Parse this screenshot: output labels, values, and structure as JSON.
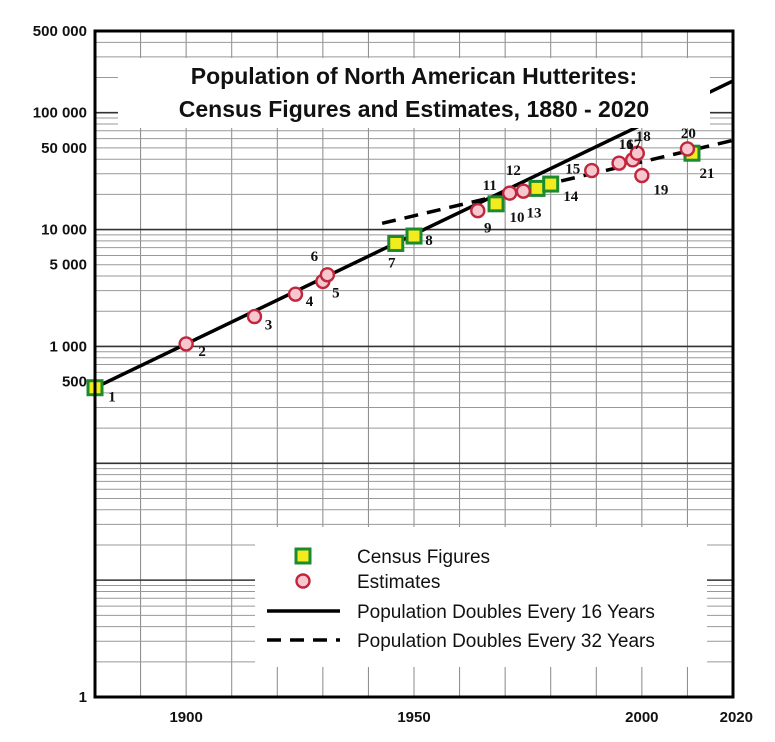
{
  "chart_data": {
    "type": "scatter",
    "title": "Population of North American Hutterites:",
    "subtitle": "Census Figures and Estimates, 1880 - 2020",
    "xlabel": "",
    "ylabel": "",
    "xlim": [
      1880,
      2020
    ],
    "ylim": [
      1,
      500000
    ],
    "yscale": "log",
    "x_ticks": [
      1900,
      1950,
      2000,
      2020
    ],
    "y_ticks": [
      {
        "value": 1,
        "label": "1"
      },
      {
        "value": 500,
        "label": "500"
      },
      {
        "value": 1000,
        "label": "1 000"
      },
      {
        "value": 5000,
        "label": "5 000"
      },
      {
        "value": 10000,
        "label": "10 000"
      },
      {
        "value": 50000,
        "label": "50 000"
      },
      {
        "value": 100000,
        "label": "100 000"
      },
      {
        "value": 500000,
        "label": "500 000"
      }
    ],
    "grid": true,
    "legend_position": "bottom-right",
    "series": [
      {
        "name": "Census Figures",
        "marker": "square",
        "color": "#f2ec1e",
        "edge_color": "#1c8a2e",
        "points": [
          {
            "label": "1",
            "x": 1880,
            "y": 443
          },
          {
            "label": "7",
            "x": 1946,
            "y": 7600
          },
          {
            "label": "8",
            "x": 1950,
            "y": 8800
          },
          {
            "label": "10",
            "x": 1968,
            "y": 16600
          },
          {
            "label": "13",
            "x": 1977,
            "y": 22500
          },
          {
            "label": "14",
            "x": 1980,
            "y": 24500
          },
          {
            "label": "21",
            "x": 2011,
            "y": 45000
          }
        ]
      },
      {
        "name": "Estimates",
        "marker": "circle",
        "color": "#f7c6cf",
        "edge_color": "#c0273c",
        "points": [
          {
            "label": "2",
            "x": 1900,
            "y": 1050
          },
          {
            "label": "3",
            "x": 1915,
            "y": 1800
          },
          {
            "label": "4",
            "x": 1924,
            "y": 2800
          },
          {
            "label": "5",
            "x": 1930,
            "y": 3600
          },
          {
            "label": "6",
            "x": 1931,
            "y": 4100
          },
          {
            "label": "9",
            "x": 1964,
            "y": 14500
          },
          {
            "label": "11",
            "x": 1971,
            "y": 20500
          },
          {
            "label": "12",
            "x": 1974,
            "y": 21300
          },
          {
            "label": "15",
            "x": 1989,
            "y": 32000
          },
          {
            "label": "16",
            "x": 1995,
            "y": 37000
          },
          {
            "label": "17",
            "x": 1998,
            "y": 39500
          },
          {
            "label": "18",
            "x": 1999,
            "y": 45000
          },
          {
            "label": "19",
            "x": 2000,
            "y": 29000
          },
          {
            "label": "20",
            "x": 2010,
            "y": 49000
          }
        ]
      }
    ],
    "lines": [
      {
        "name": "Population Doubles Every 16 Years",
        "style": "solid",
        "color": "#000000",
        "x": [
          1880,
          2020
        ],
        "y": [
          443,
          187000
        ]
      },
      {
        "name": "Population Doubles Every 32 Years",
        "style": "dashed",
        "color": "#000000",
        "x": [
          1943,
          2020
        ],
        "y": [
          11300,
          58000
        ]
      }
    ],
    "legend": [
      {
        "name": "Census Figures",
        "marker": "square"
      },
      {
        "name": "Estimates",
        "marker": "circle"
      },
      {
        "name": "Population Doubles Every 16 Years",
        "marker": "solid-line"
      },
      {
        "name": "Population Doubles Every 32 Years",
        "marker": "dashed-line"
      }
    ]
  }
}
